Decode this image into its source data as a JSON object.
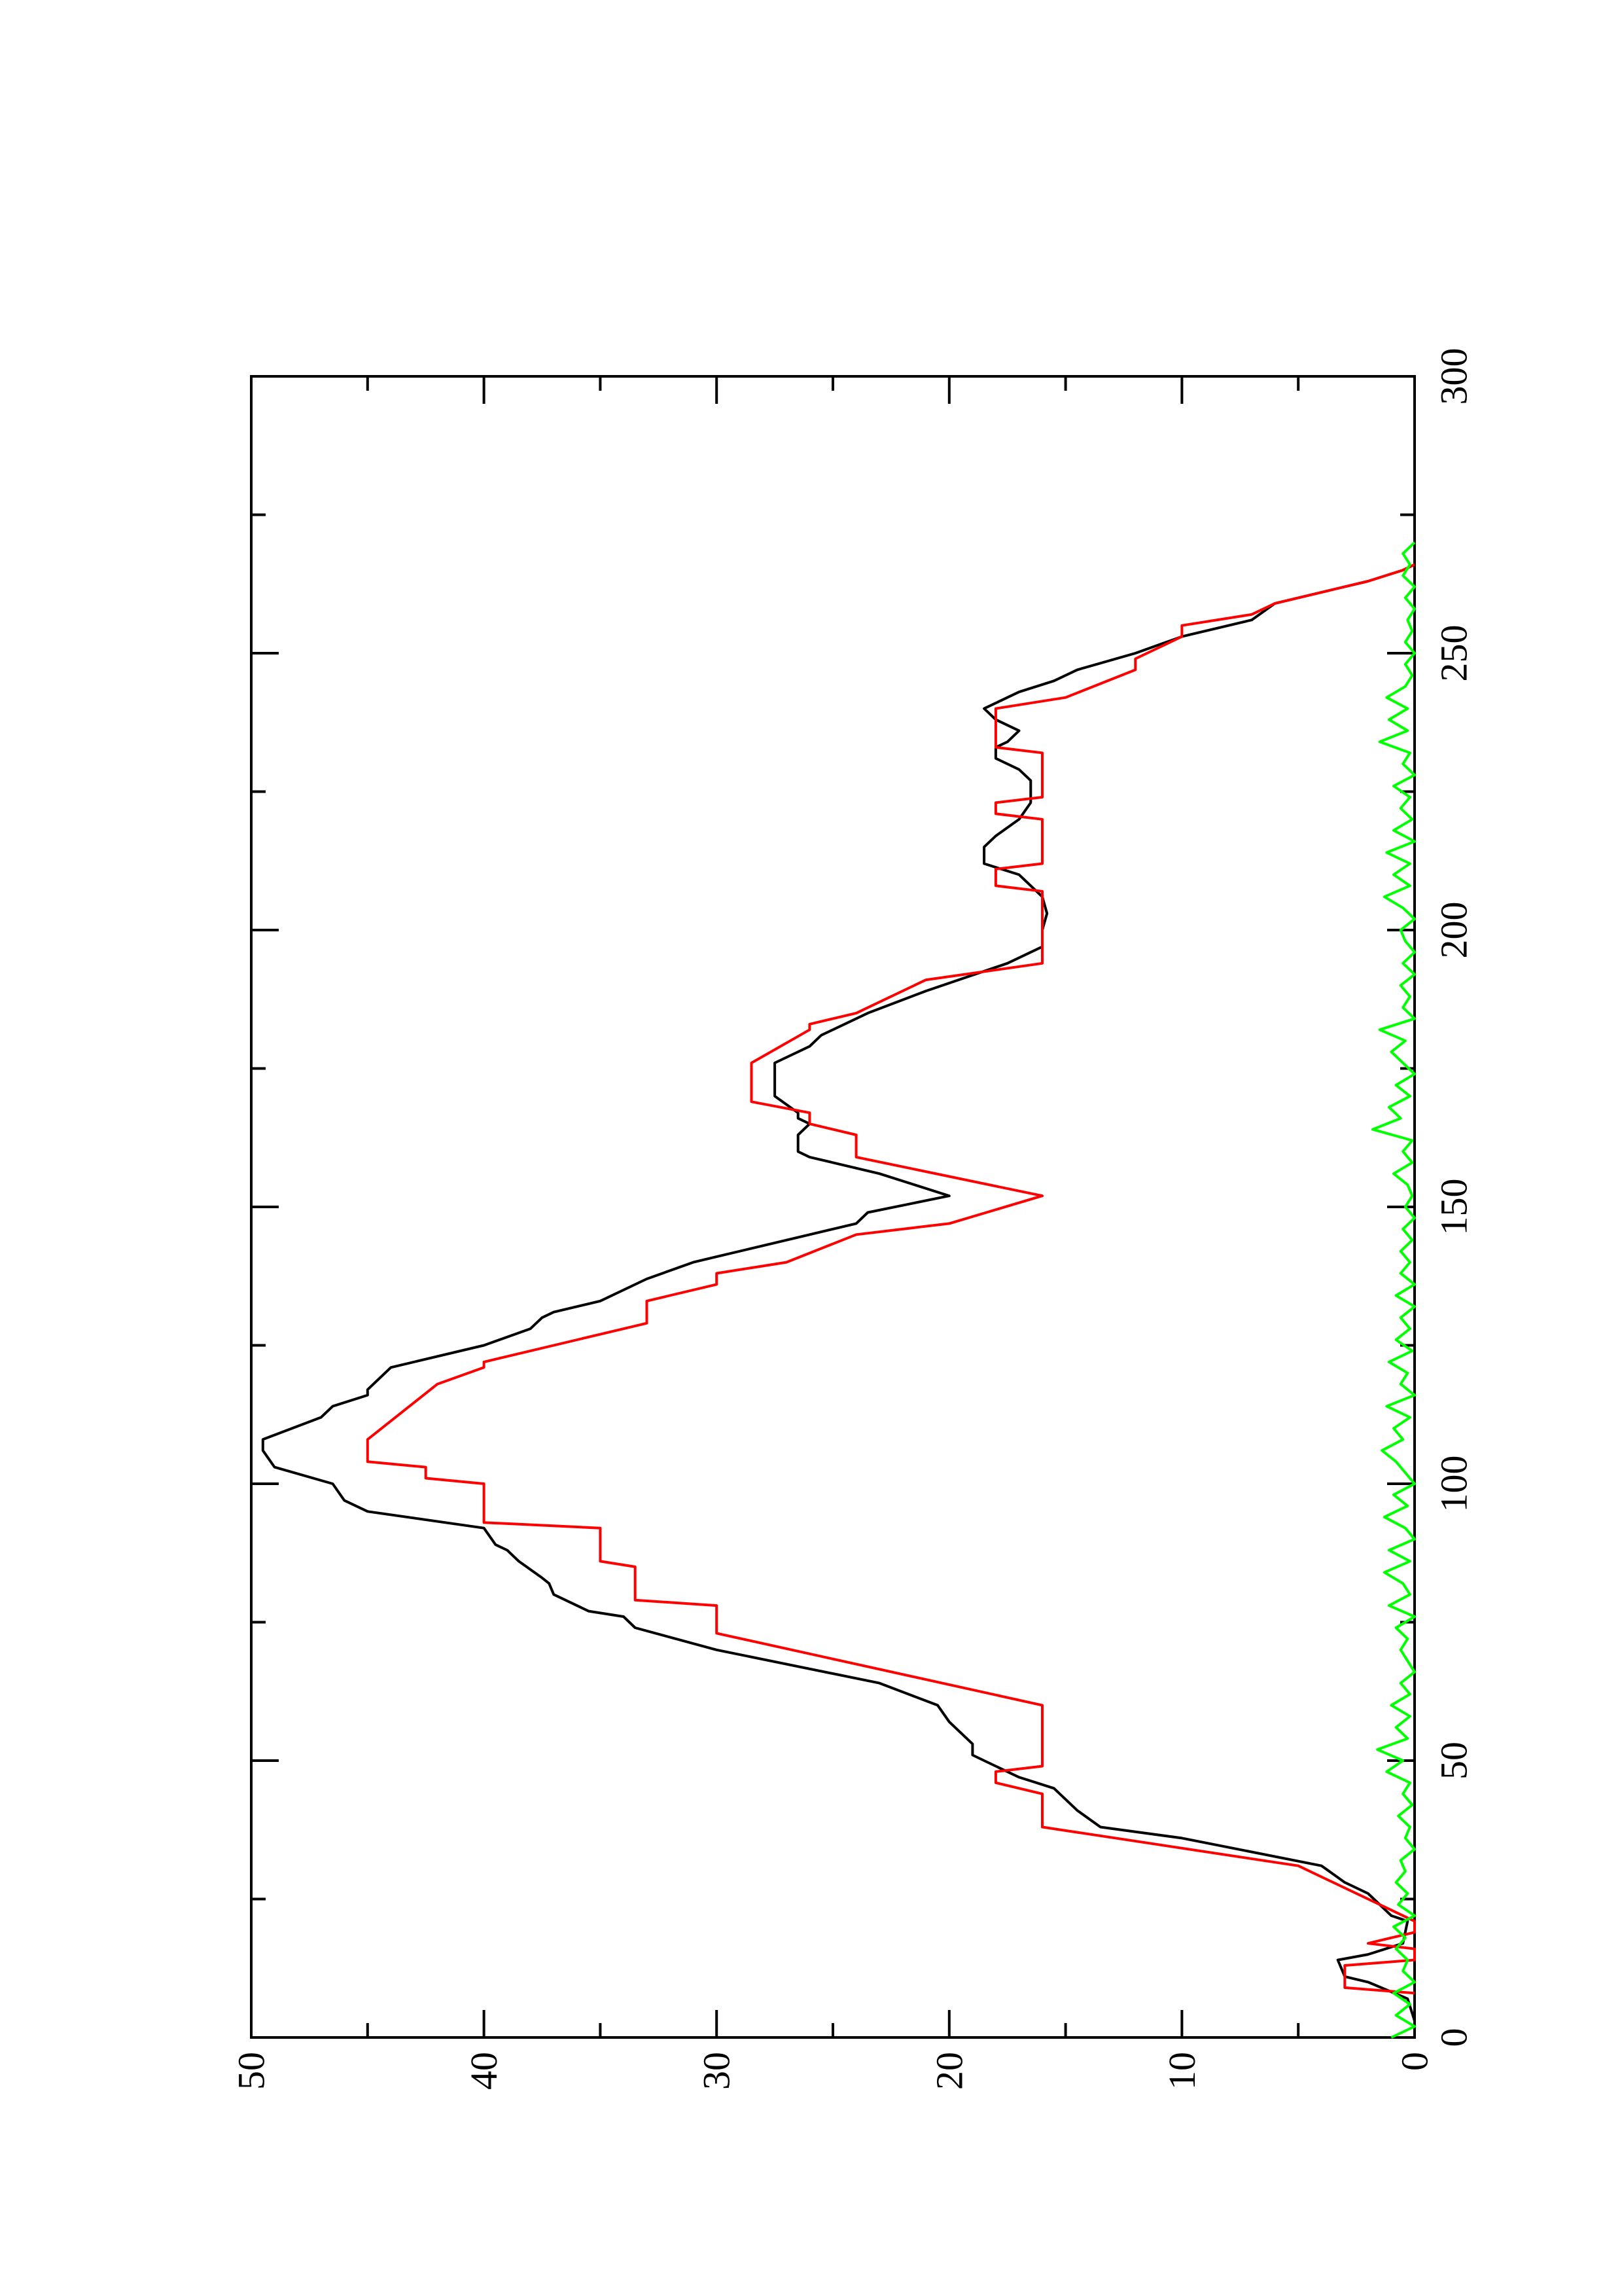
{
  "chart_data": {
    "type": "line",
    "orientation": "rotated 90 degrees counter-clockwise (x axis runs upward along the page, y axis runs from right to left)",
    "xlim": [
      0,
      300
    ],
    "ylim": [
      0,
      50
    ],
    "x_ticks": [
      0,
      50,
      100,
      150,
      200,
      250,
      300
    ],
    "y_ticks": [
      0,
      10,
      20,
      30,
      40,
      50
    ],
    "x_minor_step": 25,
    "y_minor_step": 5,
    "title": "",
    "xlabel": "",
    "ylabel": "",
    "grid": false,
    "legend": "none",
    "series": [
      {
        "color": "#000000",
        "style": "line",
        "points": [
          [
            0,
            0
          ],
          [
            3,
            0
          ],
          [
            7,
            0.3
          ],
          [
            10,
            2
          ],
          [
            11,
            3
          ],
          [
            14,
            3.3
          ],
          [
            15,
            2
          ],
          [
            17,
            0.5
          ],
          [
            21,
            0.3
          ],
          [
            22,
            1
          ],
          [
            26,
            2
          ],
          [
            28,
            3
          ],
          [
            31,
            4
          ],
          [
            36,
            10
          ],
          [
            38,
            13.5
          ],
          [
            41,
            14.5
          ],
          [
            45,
            15.5
          ],
          [
            47,
            17
          ],
          [
            49,
            18
          ],
          [
            50,
            18.5
          ],
          [
            51,
            19
          ],
          [
            53,
            19
          ],
          [
            55,
            19.5
          ],
          [
            57,
            20
          ],
          [
            60,
            20.5
          ],
          [
            64,
            23
          ],
          [
            70,
            30
          ],
          [
            74,
            33.5
          ],
          [
            76,
            34
          ],
          [
            77,
            35.5
          ],
          [
            80,
            37
          ],
          [
            82,
            37.2
          ],
          [
            83,
            37.5
          ],
          [
            86,
            38.5
          ],
          [
            88,
            39
          ],
          [
            89,
            39.5
          ],
          [
            92,
            40
          ],
          [
            95,
            45
          ],
          [
            97,
            46
          ],
          [
            100,
            46.5
          ],
          [
            103,
            49
          ],
          [
            106,
            49.5
          ],
          [
            108,
            49.5
          ],
          [
            112,
            47
          ],
          [
            114,
            46.5
          ],
          [
            116,
            45
          ],
          [
            117,
            45
          ],
          [
            121,
            44
          ],
          [
            125,
            40
          ],
          [
            128,
            38
          ],
          [
            130,
            37.5
          ],
          [
            131,
            37
          ],
          [
            133,
            35
          ],
          [
            137,
            33
          ],
          [
            140,
            31
          ],
          [
            141,
            30
          ],
          [
            145,
            26
          ],
          [
            147,
            24
          ],
          [
            149,
            23.5
          ],
          [
            152,
            20
          ],
          [
            156,
            23
          ],
          [
            159,
            26
          ],
          [
            160,
            26.5
          ],
          [
            163,
            26.5
          ],
          [
            165,
            26
          ],
          [
            166,
            26.5
          ],
          [
            167,
            26.5
          ],
          [
            170,
            27.5
          ],
          [
            172,
            27.5
          ],
          [
            174,
            27.5
          ],
          [
            176,
            27.5
          ],
          [
            179,
            26
          ],
          [
            181,
            25.5
          ],
          [
            183,
            24.5
          ],
          [
            185,
            23.5
          ],
          [
            189,
            21
          ],
          [
            194,
            17.5
          ],
          [
            197,
            16
          ],
          [
            200,
            16
          ],
          [
            203,
            15.8
          ],
          [
            206,
            16
          ],
          [
            208,
            16.5
          ],
          [
            210,
            17
          ],
          [
            212,
            18.5
          ],
          [
            214,
            18.5
          ],
          [
            215,
            18.5
          ],
          [
            217,
            18
          ],
          [
            220,
            17
          ],
          [
            223,
            16.5
          ],
          [
            227,
            16.5
          ],
          [
            229,
            17
          ],
          [
            231,
            18
          ],
          [
            233,
            18
          ],
          [
            234,
            17.5
          ],
          [
            236,
            17
          ],
          [
            238,
            18
          ],
          [
            240,
            18.5
          ],
          [
            243,
            17
          ],
          [
            245,
            15.5
          ],
          [
            247,
            14.5
          ],
          [
            250,
            12
          ],
          [
            253,
            10
          ],
          [
            256,
            7
          ],
          [
            259,
            6
          ],
          [
            261,
            4
          ],
          [
            263,
            2
          ],
          [
            265,
            0.5
          ],
          [
            266,
            0
          ]
        ]
      },
      {
        "color": "#ff0000",
        "style": "step",
        "points": [
          [
            8,
            0
          ],
          [
            9,
            3
          ],
          [
            13,
            3
          ],
          [
            14,
            0
          ],
          [
            16,
            0
          ],
          [
            17,
            2
          ],
          [
            18,
            1
          ],
          [
            19,
            0
          ],
          [
            21,
            0
          ],
          [
            31,
            5
          ],
          [
            38,
            16
          ],
          [
            44,
            16
          ],
          [
            46,
            18
          ],
          [
            48,
            18
          ],
          [
            49,
            16
          ],
          [
            60,
            16
          ],
          [
            73,
            30
          ],
          [
            78,
            30
          ],
          [
            79,
            33.5
          ],
          [
            85,
            33.5
          ],
          [
            86,
            35
          ],
          [
            92,
            35
          ],
          [
            93,
            40
          ],
          [
            100,
            40
          ],
          [
            101,
            42.5
          ],
          [
            103,
            42.5
          ],
          [
            104,
            45
          ],
          [
            108,
            45
          ],
          [
            118,
            42
          ],
          [
            121,
            40
          ],
          [
            122,
            40
          ],
          [
            129,
            33
          ],
          [
            133,
            33
          ],
          [
            136,
            30
          ],
          [
            138,
            30
          ],
          [
            140,
            27
          ],
          [
            145,
            24
          ],
          [
            147,
            20
          ],
          [
            152,
            16
          ],
          [
            159,
            24
          ],
          [
            160,
            24
          ],
          [
            163,
            24
          ],
          [
            165,
            26
          ],
          [
            167,
            26
          ],
          [
            169,
            28.5
          ],
          [
            176,
            28.5
          ],
          [
            182,
            26
          ],
          [
            183,
            26
          ],
          [
            185,
            24
          ],
          [
            191,
            21
          ],
          [
            194,
            16
          ],
          [
            207,
            16
          ],
          [
            208,
            18
          ],
          [
            211,
            18
          ],
          [
            212,
            16
          ],
          [
            220,
            16
          ],
          [
            221,
            18
          ],
          [
            223,
            18
          ],
          [
            224,
            16
          ],
          [
            232,
            16
          ],
          [
            233,
            18
          ],
          [
            236,
            18
          ],
          [
            240,
            18
          ],
          [
            242,
            15
          ],
          [
            247,
            12
          ],
          [
            249,
            12
          ],
          [
            253,
            10
          ],
          [
            255,
            10
          ],
          [
            257,
            7
          ],
          [
            259,
            6
          ],
          [
            261,
            4
          ],
          [
            263,
            2
          ],
          [
            265,
            0.5
          ],
          [
            266,
            0
          ]
        ]
      },
      {
        "color": "#00ff00",
        "style": "line",
        "points": [
          [
            0,
            1
          ],
          [
            2,
            0
          ],
          [
            4,
            0.8
          ],
          [
            6,
            0.2
          ],
          [
            8,
            0.9
          ],
          [
            10,
            0
          ],
          [
            12,
            0.5
          ],
          [
            14,
            0.3
          ],
          [
            16,
            0.8
          ],
          [
            18,
            0.4
          ],
          [
            20,
            0.9
          ],
          [
            22,
            0
          ],
          [
            24,
            0.7
          ],
          [
            26,
            0.3
          ],
          [
            28,
            0.8
          ],
          [
            30,
            0.4
          ],
          [
            32,
            0.6
          ],
          [
            34,
            0
          ],
          [
            36,
            0.4
          ],
          [
            38,
            0.2
          ],
          [
            40,
            0.7
          ],
          [
            42,
            0.1
          ],
          [
            44,
            0.5
          ],
          [
            46,
            0.2
          ],
          [
            48,
            1.2
          ],
          [
            50,
            0.5
          ],
          [
            52,
            1.6
          ],
          [
            54,
            0.3
          ],
          [
            56,
            0.8
          ],
          [
            58,
            0.2
          ],
          [
            60,
            1
          ],
          [
            62,
            0.2
          ],
          [
            64,
            0.6
          ],
          [
            66,
            0
          ],
          [
            68,
            0.3
          ],
          [
            70,
            0.6
          ],
          [
            72,
            0.3
          ],
          [
            74,
            0.8
          ],
          [
            76,
            0
          ],
          [
            78,
            1.1
          ],
          [
            80,
            0.2
          ],
          [
            82,
            0.5
          ],
          [
            84,
            1.3
          ],
          [
            86,
            0.2
          ],
          [
            88,
            1.1
          ],
          [
            90,
            0
          ],
          [
            92,
            0.4
          ],
          [
            94,
            1.3
          ],
          [
            96,
            0.3
          ],
          [
            98,
            0.9
          ],
          [
            100,
            0
          ],
          [
            102,
            0.4
          ],
          [
            104,
            0.8
          ],
          [
            106,
            1.4
          ],
          [
            108,
            0.5
          ],
          [
            110,
            0.9
          ],
          [
            112,
            0.2
          ],
          [
            114,
            1.2
          ],
          [
            116,
            0
          ],
          [
            118,
            0.6
          ],
          [
            120,
            0.3
          ],
          [
            122,
            1.1
          ],
          [
            124,
            0.1
          ],
          [
            126,
            0.8
          ],
          [
            128,
            0.2
          ],
          [
            130,
            0.6
          ],
          [
            132,
            0
          ],
          [
            134,
            0.8
          ],
          [
            136,
            0
          ],
          [
            138,
            0.6
          ],
          [
            140,
            0.2
          ],
          [
            142,
            0.6
          ],
          [
            144,
            0.1
          ],
          [
            146,
            0.5
          ],
          [
            148,
            0
          ],
          [
            150,
            0.4
          ],
          [
            152,
            0.1
          ],
          [
            154,
            0.3
          ],
          [
            156,
            0.9
          ],
          [
            158,
            0.1
          ],
          [
            160,
            0.5
          ],
          [
            162,
            0.1
          ],
          [
            164,
            1.8
          ],
          [
            166,
            0.6
          ],
          [
            168,
            1.1
          ],
          [
            170,
            0.2
          ],
          [
            172,
            0.8
          ],
          [
            174,
            0
          ],
          [
            176,
            0.5
          ],
          [
            178,
            1
          ],
          [
            180,
            0.4
          ],
          [
            182,
            1.5
          ],
          [
            184,
            0
          ],
          [
            186,
            0.5
          ],
          [
            188,
            0.2
          ],
          [
            190,
            0.6
          ],
          [
            192,
            0
          ],
          [
            194,
            0.5
          ],
          [
            196,
            0
          ],
          [
            198,
            0.4
          ],
          [
            200,
            0.6
          ],
          [
            202,
            0
          ],
          [
            204,
            0.5
          ],
          [
            206,
            1.3
          ],
          [
            208,
            0.2
          ],
          [
            210,
            0.9
          ],
          [
            212,
            0.2
          ],
          [
            214,
            1.2
          ],
          [
            216,
            0
          ],
          [
            218,
            0.9
          ],
          [
            220,
            0.1
          ],
          [
            222,
            0.6
          ],
          [
            224,
            0.2
          ],
          [
            226,
            0.9
          ],
          [
            228,
            0
          ],
          [
            230,
            0.5
          ],
          [
            232,
            0.2
          ],
          [
            234,
            1.5
          ],
          [
            236,
            0.3
          ],
          [
            238,
            1.1
          ],
          [
            240,
            0.3
          ],
          [
            242,
            1.2
          ],
          [
            244,
            0.4
          ],
          [
            246,
            0.1
          ],
          [
            248,
            0.4
          ],
          [
            250,
            0
          ],
          [
            252,
            0.4
          ],
          [
            254,
            0.1
          ],
          [
            256,
            0.3
          ],
          [
            258,
            0
          ],
          [
            260,
            0.4
          ],
          [
            262,
            0
          ],
          [
            264,
            0.5
          ],
          [
            266,
            0.2
          ],
          [
            268,
            0.5
          ],
          [
            270,
            0
          ]
        ]
      }
    ]
  }
}
